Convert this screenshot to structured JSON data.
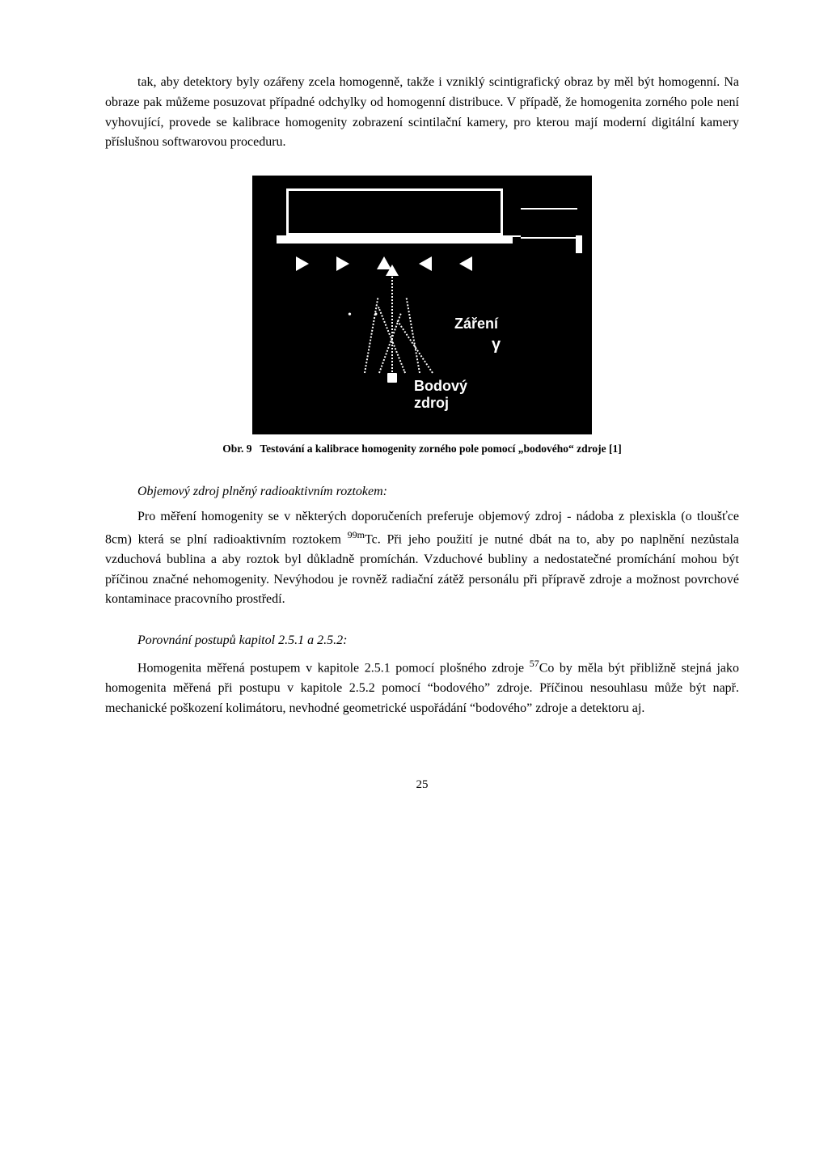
{
  "para1": "tak, aby detektory byly ozářeny zcela homogenně, takže i vzniklý scintigrafický obraz by měl být homogenní. Na obraze pak můžeme posuzovat případné odchylky od homogenní distribuce. V případě, že homogenita zorného pole není vyhovující, provede se kalibrace homogenity zobrazení scintilační kamery, pro kterou mají moderní digitální kamery příslušnou softwarovou proceduru.",
  "figure": {
    "label_zareni": "Záření",
    "label_gamma": "γ",
    "label_bodovy_line1": "Bodový",
    "label_bodovy_line2": "zdroj",
    "background": "#000000",
    "foreground": "#ffffff"
  },
  "caption_prefix": "Obr. 9",
  "caption_text": "Testování a kalibrace homogenity zorného pole pomocí „bodového“ zdroje [1]",
  "heading2": "Objemový zdroj plněný radioaktivním roztokem:",
  "para2a": "Pro měření homogenity se v některých doporučeních preferuje objemový zdroj - nádoba z plexiskla (o tloušťce 8cm) která se plní radioaktivním roztokem ",
  "para2_iso": "99m",
  "para2_iso_el": "Tc",
  "para2b": ". Při jeho použití je nutné dbát na to, aby po naplnění nezůstala vzduchová bublina a aby roztok byl důkladně promíchán. Vzduchové bubliny a nedostatečné promíchání mohou být příčinou značné nehomogenity. Nevýhodou je rovněž radiační zátěž personálu při přípravě zdroje a možnost povrchové kontaminace pracovního prostředí.",
  "heading3": "Porovnání postupů kapitol 2.5.1 a 2.5.2:",
  "para3a": "Homogenita měřená postupem v kapitole 2.5.1 pomocí plošného zdroje ",
  "para3_iso": "57",
  "para3_iso_el": "Co",
  "para3b": " by měla být přibližně stejná jako homogenita měřená při postupu v kapitole 2.5.2 pomocí “bodového” zdroje. Příčinou nesouhlasu může být např. mechanické poškození kolimátoru, nevhodné geometrické uspořádání “bodového” zdroje a detektoru aj.",
  "page_number": "25"
}
